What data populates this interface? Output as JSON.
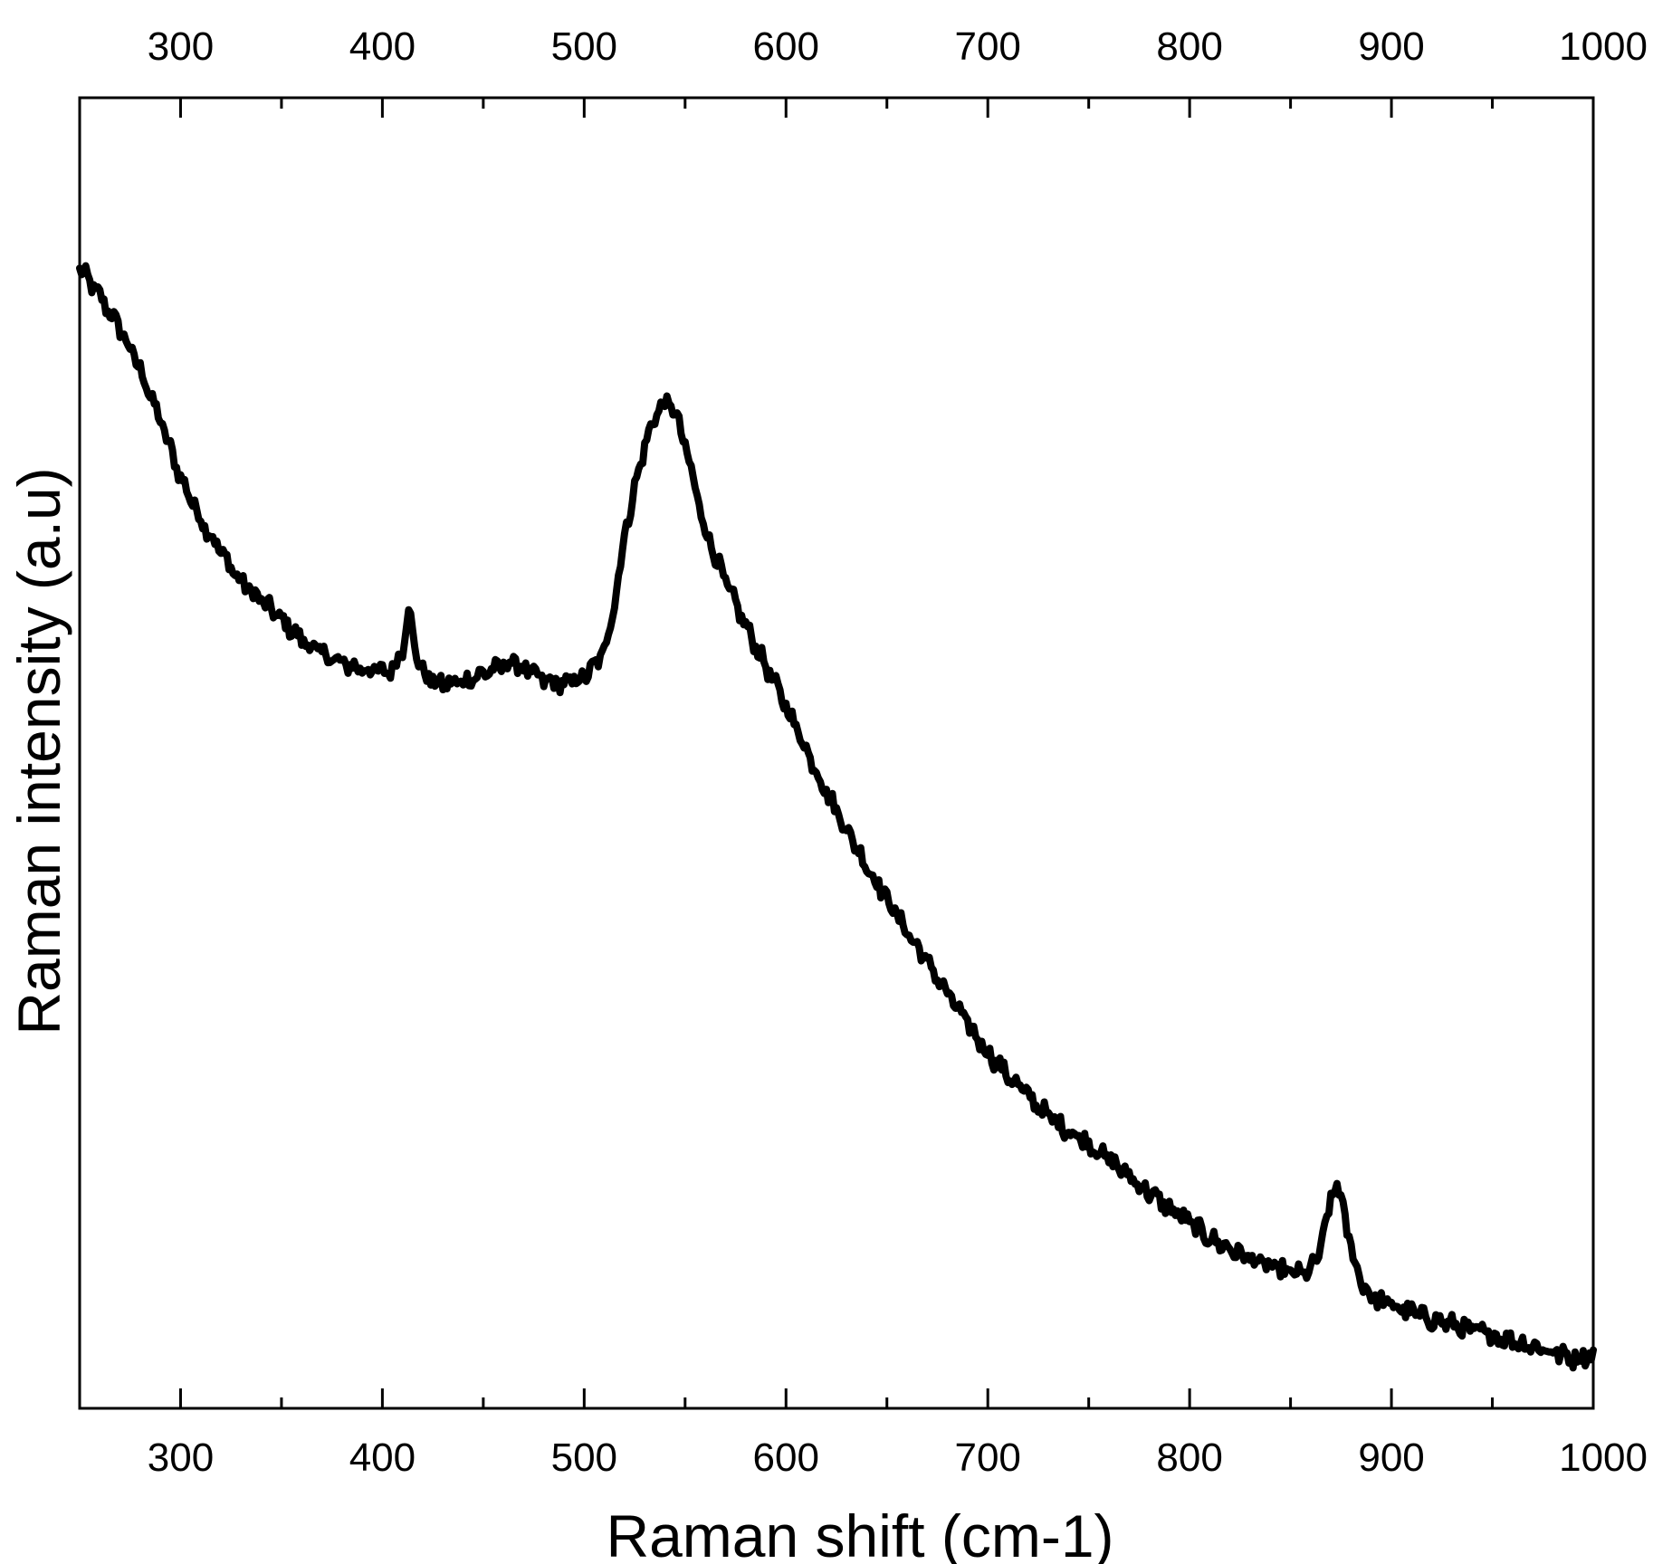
{
  "chart_data": {
    "type": "line",
    "title": "",
    "xlabel": "Raman shift (cm-1)",
    "ylabel": "Raman intensity (a.u)",
    "xlim": [
      250,
      1000
    ],
    "ylim": [
      0,
      100
    ],
    "x_ticks": [
      300,
      400,
      500,
      600,
      700,
      800,
      900,
      1000
    ],
    "x_tick_labels": [
      "300",
      "400",
      "500",
      "600",
      "700",
      "800",
      "900",
      "1000"
    ],
    "x_ticks_minor": [
      250,
      350,
      450,
      550,
      650,
      750,
      850,
      950
    ],
    "top_axis_ticks": true,
    "y_ticks_shown": false,
    "grid": false,
    "line_color": "#000000",
    "series": [
      {
        "x": [
          250,
          260,
          270,
          280,
          290,
          300,
          310,
          320,
          330,
          340,
          350,
          360,
          370,
          380,
          390,
          400,
          405,
          410,
          413,
          416,
          420,
          425,
          430,
          440,
          450,
          460,
          465,
          470,
          480,
          490,
          500,
          505,
          510,
          515,
          520,
          525,
          530,
          535,
          540,
          545,
          550,
          555,
          560,
          570,
          580,
          590,
          600,
          610,
          620,
          630,
          640,
          650,
          660,
          670,
          680,
          690,
          700,
          710,
          720,
          730,
          740,
          750,
          760,
          770,
          780,
          790,
          800,
          810,
          820,
          830,
          840,
          850,
          855,
          860,
          865,
          870,
          873,
          876,
          880,
          885,
          890,
          900,
          910,
          920,
          930,
          940,
          950,
          960,
          970,
          980,
          990,
          1000
        ],
        "y": [
          90.1,
          87.7,
          85.0,
          81.6,
          77.3,
          72.6,
          69.1,
          66.4,
          63.8,
          62.3,
          60.7,
          59.0,
          57.9,
          57.0,
          56.6,
          56.3,
          56.5,
          58.3,
          61.8,
          58.3,
          56.3,
          55.5,
          55.3,
          55.5,
          56.2,
          56.8,
          57.2,
          56.6,
          55.6,
          55.3,
          55.9,
          56.8,
          58.1,
          62.1,
          67.7,
          71.7,
          75.2,
          77.7,
          78.9,
          78.1,
          75.2,
          71.7,
          68.2,
          63.8,
          60.2,
          56.8,
          53.5,
          49.9,
          46.3,
          43.2,
          40.1,
          37.4,
          34.6,
          32.1,
          29.4,
          26.9,
          24.5,
          22.6,
          20.9,
          19.2,
          18.0,
          16.9,
          15.6,
          14.2,
          12.8,
          11.5,
          10.3,
          9.0,
          8.1,
          7.3,
          6.6,
          6.1,
          6.0,
          6.3,
          8.1,
          12.3,
          13.5,
          11.5,
          8.1,
          5.4,
          4.1,
          3.4,
          2.8,
          2.2,
          1.8,
          1.3,
          0.9,
          0.4,
          0.0,
          -0.5,
          -1.0,
          -0.7
        ]
      }
    ]
  }
}
